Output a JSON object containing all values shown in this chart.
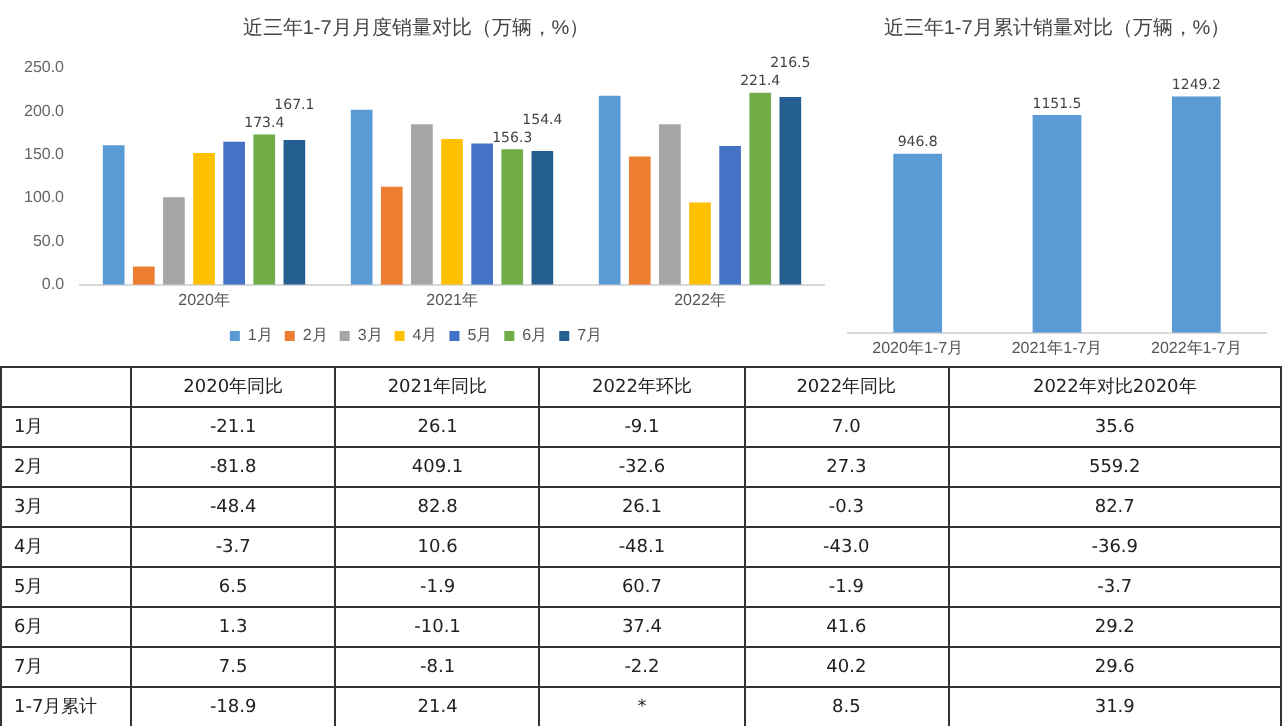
{
  "chart_data": [
    {
      "type": "bar",
      "title": "近三年1-7月月度销量对比（万辆，%）",
      "categories": [
        "2020年",
        "2021年",
        "2022年"
      ],
      "ylim": [
        0,
        250
      ],
      "yticks": [
        {
          "value": 0,
          "label": "0.0"
        },
        {
          "value": 50,
          "label": "50.0"
        },
        {
          "value": 100,
          "label": "100.0"
        },
        {
          "value": 150,
          "label": "150.0"
        },
        {
          "value": 200,
          "label": "200.0"
        },
        {
          "value": 250,
          "label": "250.0"
        }
      ],
      "legend": "bottom",
      "series": [
        {
          "name": "1月",
          "color": "#5b9bd5",
          "values": [
            161,
            202,
            218
          ]
        },
        {
          "name": "2月",
          "color": "#ed7d31",
          "values": [
            21,
            113,
            148
          ]
        },
        {
          "name": "3月",
          "color": "#a5a5a5",
          "values": [
            101,
            185,
            185
          ]
        },
        {
          "name": "4月",
          "color": "#ffc000",
          "values": [
            152,
            168,
            95
          ]
        },
        {
          "name": "5月",
          "color": "#4472c4",
          "values": [
            165,
            163,
            160
          ]
        },
        {
          "name": "6月",
          "color": "#70ad47",
          "values": [
            173.4,
            156.3,
            221.4
          ],
          "value_labels": [
            "173.4",
            "156.3",
            "221.4"
          ]
        },
        {
          "name": "7月",
          "color": "#255e91",
          "values": [
            167.1,
            154.4,
            216.5
          ],
          "value_labels": [
            "167.1",
            "154.4",
            "216.5"
          ]
        }
      ]
    },
    {
      "type": "bar",
      "title": "近三年1-7月累计销量对比（万辆，%）",
      "categories": [
        "2020年1-7月",
        "2021年1-7月",
        "2022年1-7月"
      ],
      "values": [
        946.8,
        1151.5,
        1249.2
      ],
      "color": "#5b9bd5",
      "data_labels": true,
      "tick_labels": "x"
    },
    {
      "type": "heatmap",
      "categories": [
        "2020年同比",
        "2021年同比",
        "2022年环比",
        "2022年同比",
        "2022年对比2020年"
      ],
      "y_categories": [
        "1月",
        "2月",
        "3月",
        "4月",
        "5月",
        "6月",
        "7月",
        "1-7月累计"
      ],
      "cells": [
        [
          -21.1,
          26.1,
          -9.1,
          7.0,
          35.6
        ],
        [
          -81.8,
          409.1,
          -32.6,
          27.3,
          559.2
        ],
        [
          -48.4,
          82.8,
          26.1,
          -0.3,
          82.7
        ],
        [
          -3.7,
          10.6,
          -48.1,
          -43.0,
          -36.9
        ],
        [
          6.5,
          -1.9,
          60.7,
          -1.9,
          -3.7
        ],
        [
          1.3,
          -10.1,
          37.4,
          41.6,
          29.2
        ],
        [
          7.5,
          -8.1,
          -2.2,
          40.2,
          29.6
        ],
        [
          -18.9,
          21.4,
          null,
          8.5,
          31.9
        ]
      ],
      "data_labels": true,
      "cell_labels": [
        [
          "-21.1",
          "26.1",
          "-9.1",
          "7.0",
          "35.6"
        ],
        [
          "-81.8",
          "409.1",
          "-32.6",
          "27.3",
          "559.2"
        ],
        [
          "-48.4",
          "82.8",
          "26.1",
          "-0.3",
          "82.7"
        ],
        [
          "-3.7",
          "10.6",
          "-48.1",
          "-43.0",
          "-36.9"
        ],
        [
          "6.5",
          "-1.9",
          "60.7",
          "-1.9",
          "-3.7"
        ],
        [
          "1.3",
          "-10.1",
          "37.4",
          "41.6",
          "29.2"
        ],
        [
          "7.5",
          "-8.1",
          "-2.2",
          "40.2",
          "29.6"
        ],
        [
          "-18.9",
          "21.4",
          "*",
          "8.5",
          "31.9"
        ]
      ]
    }
  ]
}
